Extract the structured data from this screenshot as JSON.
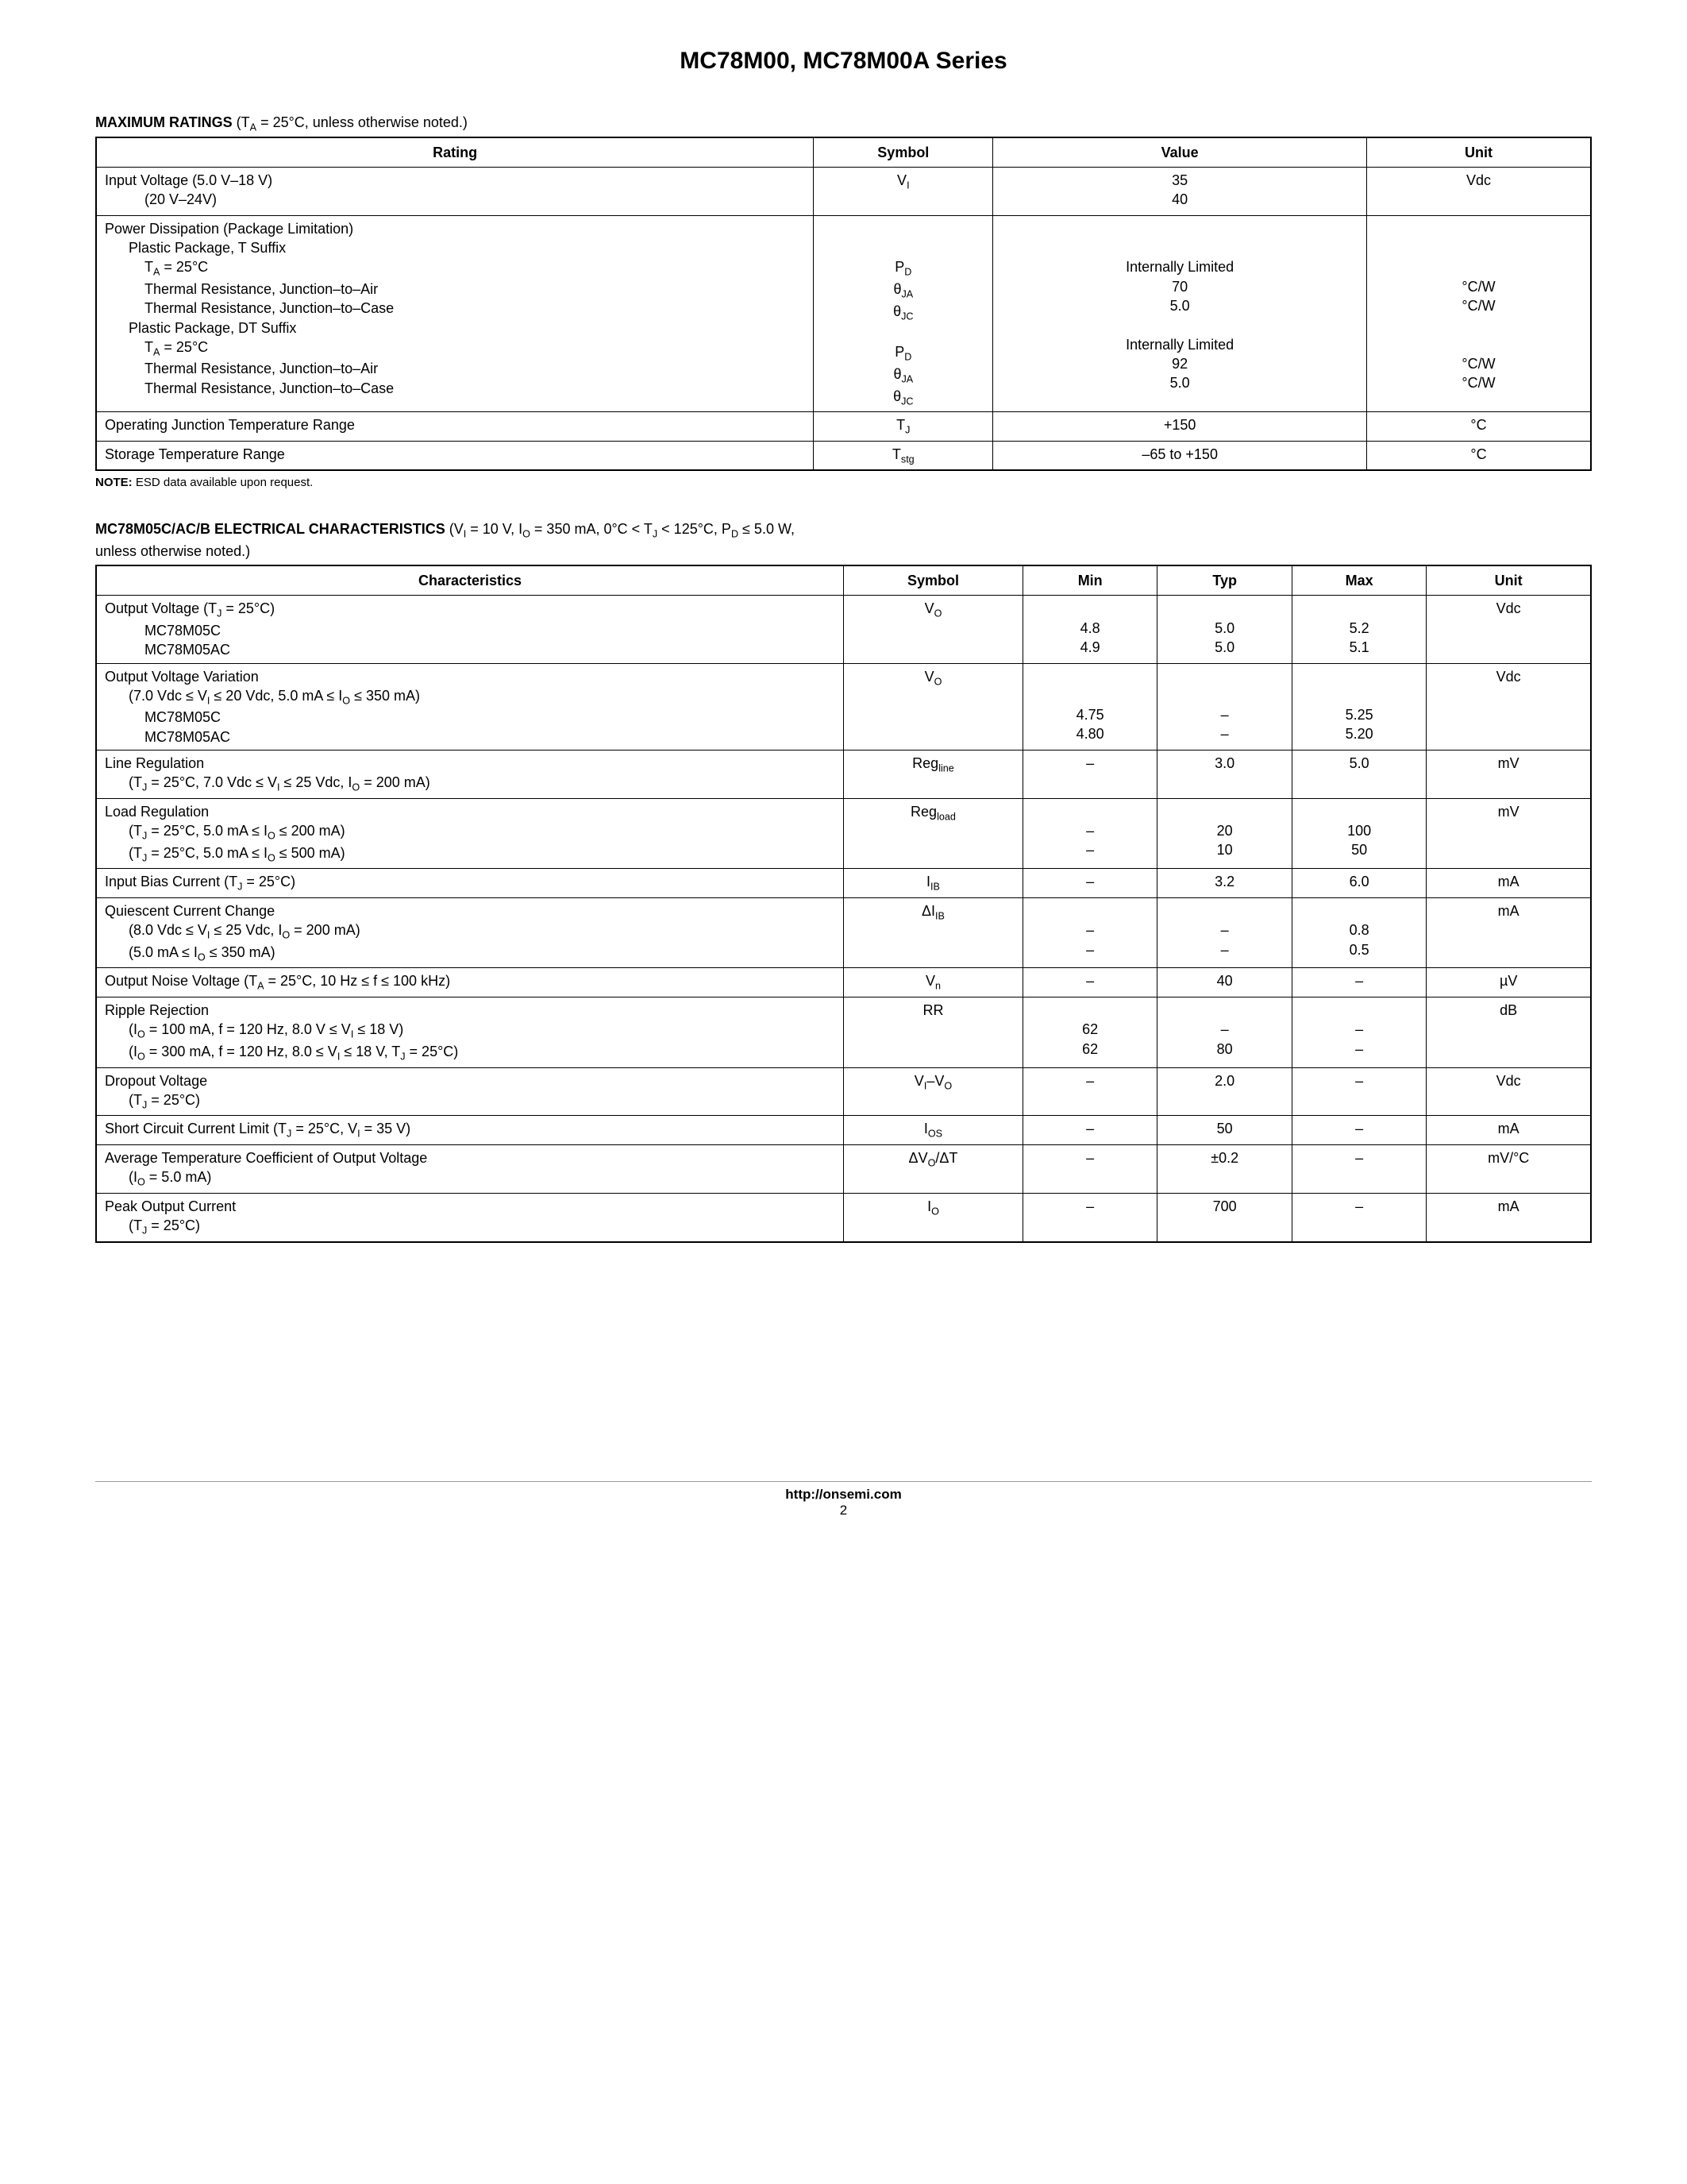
{
  "page": {
    "title": "MC78M00, MC78M00A Series",
    "footer_url": "http://onsemi.com",
    "footer_page": "2"
  },
  "colors": {
    "text": "#000000",
    "background": "#ffffff",
    "border": "#000000",
    "footer_rule": "#999999"
  },
  "typography": {
    "body_family": "Arial, Helvetica, sans-serif",
    "body_size_pt": 13,
    "title_size_pt": 22,
    "note_size_pt": 11
  },
  "max_ratings": {
    "heading_bold": "MAXIMUM RATINGS",
    "heading_rest": " (T_A = 25°C, unless otherwise noted.)",
    "columns": [
      "Rating",
      "Symbol",
      "Value",
      "Unit"
    ],
    "col_widths_pct": [
      48,
      12,
      25,
      15
    ],
    "note_bold": "NOTE:",
    "note_rest": " ESD data available upon request.",
    "rows": [
      {
        "rating_lines": [
          "Input Voltage   (5.0 V–18 V)",
          "(20 V–24V)"
        ],
        "rating_indent": [
          0,
          2
        ],
        "symbol_lines": [
          "V_I",
          ""
        ],
        "value_lines": [
          "35",
          "40"
        ],
        "unit_lines": [
          "Vdc",
          ""
        ]
      },
      {
        "rating_lines": [
          "Power Dissipation (Package Limitation)",
          "Plastic Package, T Suffix",
          "T_A = 25°C",
          "Thermal Resistance, Junction–to–Air",
          "Thermal Resistance, Junction–to–Case",
          "Plastic Package, DT Suffix",
          "T_A = 25°C",
          "Thermal Resistance, Junction–to–Air",
          "Thermal Resistance, Junction–to–Case"
        ],
        "rating_indent": [
          0,
          1,
          2,
          2,
          2,
          1,
          2,
          2,
          2
        ],
        "symbol_lines": [
          "",
          "",
          "P_D",
          "θ_JA",
          "θ_JC",
          "",
          "P_D",
          "θ_JA",
          "θ_JC"
        ],
        "value_lines": [
          "",
          "",
          "Internally Limited",
          "70",
          "5.0",
          "",
          "Internally Limited",
          "92",
          "5.0"
        ],
        "unit_lines": [
          "",
          "",
          "",
          "°C/W",
          "°C/W",
          "",
          "",
          "°C/W",
          "°C/W"
        ]
      },
      {
        "rating_lines": [
          "Operating Junction Temperature Range"
        ],
        "rating_indent": [
          0
        ],
        "symbol_lines": [
          "T_J"
        ],
        "value_lines": [
          "+150"
        ],
        "unit_lines": [
          "°C"
        ]
      },
      {
        "rating_lines": [
          "Storage Temperature Range"
        ],
        "rating_indent": [
          0
        ],
        "symbol_lines": [
          "T_stg"
        ],
        "value_lines": [
          "–65 to +150"
        ],
        "unit_lines": [
          "°C"
        ]
      }
    ]
  },
  "elec_char": {
    "heading_bold": "MC78M05C/AC/B ELECTRICAL CHARACTERISTICS",
    "heading_rest": " (V_I = 10 V, I_O = 350 mA, 0°C < T_J < 125°C, P_D ≤ 5.0 W,",
    "heading_line2": "unless otherwise noted.)",
    "columns": [
      "Characteristics",
      "Symbol",
      "Min",
      "Typ",
      "Max",
      "Unit"
    ],
    "col_widths_pct": [
      50,
      12,
      9,
      9,
      9,
      11
    ],
    "rows": [
      {
        "char_lines": [
          "Output Voltage (T_J = 25°C)",
          "MC78M05C",
          "MC78M05AC"
        ],
        "char_indent": [
          0,
          2,
          2
        ],
        "symbol_lines": [
          "V_O",
          "",
          ""
        ],
        "min_lines": [
          "",
          "4.8",
          "4.9"
        ],
        "typ_lines": [
          "",
          "5.0",
          "5.0"
        ],
        "max_lines": [
          "",
          "5.2",
          "5.1"
        ],
        "unit_lines": [
          "Vdc",
          "",
          ""
        ]
      },
      {
        "char_lines": [
          "Output Voltage Variation",
          "(7.0 Vdc ≤ V_I ≤ 20 Vdc, 5.0 mA ≤ I_O ≤ 350 mA)",
          "MC78M05C",
          "MC78M05AC"
        ],
        "char_indent": [
          0,
          1,
          2,
          2
        ],
        "symbol_lines": [
          "V_O",
          "",
          "",
          ""
        ],
        "min_lines": [
          "",
          "",
          "4.75",
          "4.80"
        ],
        "typ_lines": [
          "",
          "",
          "–",
          "–"
        ],
        "max_lines": [
          "",
          "",
          "5.25",
          "5.20"
        ],
        "unit_lines": [
          "Vdc",
          "",
          "",
          ""
        ]
      },
      {
        "char_lines": [
          "Line Regulation",
          "(T_J = 25°C, 7.0 Vdc ≤ V_I ≤ 25 Vdc, I_O = 200 mA)"
        ],
        "char_indent": [
          0,
          1
        ],
        "symbol_lines": [
          "Reg_line",
          ""
        ],
        "min_lines": [
          "–",
          ""
        ],
        "typ_lines": [
          "3.0",
          ""
        ],
        "max_lines": [
          "5.0",
          ""
        ],
        "unit_lines": [
          "mV",
          ""
        ]
      },
      {
        "char_lines": [
          "Load Regulation",
          "(T_J = 25°C, 5.0 mA ≤ I_O ≤ 200 mA)",
          "(T_J = 25°C, 5.0 mA ≤ I_O ≤ 500 mA)"
        ],
        "char_indent": [
          0,
          1,
          1
        ],
        "symbol_lines": [
          "Reg_load",
          "",
          ""
        ],
        "min_lines": [
          "",
          "–",
          "–"
        ],
        "typ_lines": [
          "",
          "20",
          "10"
        ],
        "max_lines": [
          "",
          "100",
          "50"
        ],
        "unit_lines": [
          "mV",
          "",
          ""
        ]
      },
      {
        "char_lines": [
          "Input Bias Current (T_J = 25°C)"
        ],
        "char_indent": [
          0
        ],
        "symbol_lines": [
          "I_IB"
        ],
        "min_lines": [
          "–"
        ],
        "typ_lines": [
          "3.2"
        ],
        "max_lines": [
          "6.0"
        ],
        "unit_lines": [
          "mA"
        ]
      },
      {
        "char_lines": [
          "Quiescent Current Change",
          "(8.0 Vdc ≤ V_I ≤ 25 Vdc, I_O = 200 mA)",
          "(5.0 mA ≤ I_O ≤ 350 mA)"
        ],
        "char_indent": [
          0,
          1,
          1
        ],
        "symbol_lines": [
          "ΔI_IB",
          "",
          ""
        ],
        "min_lines": [
          "",
          "–",
          "–"
        ],
        "typ_lines": [
          "",
          "–",
          "–"
        ],
        "max_lines": [
          "",
          "0.8",
          "0.5"
        ],
        "unit_lines": [
          "mA",
          "",
          ""
        ]
      },
      {
        "char_lines": [
          "Output Noise Voltage (T_A = 25°C, 10 Hz ≤ f ≤ 100 kHz)"
        ],
        "char_indent": [
          0
        ],
        "symbol_lines": [
          "V_n"
        ],
        "min_lines": [
          "–"
        ],
        "typ_lines": [
          "40"
        ],
        "max_lines": [
          "–"
        ],
        "unit_lines": [
          "µV"
        ]
      },
      {
        "char_lines": [
          "Ripple Rejection",
          "(I_O = 100 mA, f = 120 Hz, 8.0 V ≤ V_I ≤ 18 V)",
          "(I_O = 300 mA, f = 120 Hz, 8.0 ≤ V_I ≤ 18 V, T_J = 25°C)"
        ],
        "char_indent": [
          0,
          1,
          1
        ],
        "symbol_lines": [
          "RR",
          "",
          ""
        ],
        "min_lines": [
          "",
          "62",
          "62"
        ],
        "typ_lines": [
          "",
          "–",
          "80"
        ],
        "max_lines": [
          "",
          "–",
          "–"
        ],
        "unit_lines": [
          "dB",
          "",
          ""
        ]
      },
      {
        "char_lines": [
          "Dropout Voltage",
          "(T_J = 25°C)"
        ],
        "char_indent": [
          0,
          1
        ],
        "symbol_lines": [
          "V_I–V_O",
          ""
        ],
        "min_lines": [
          "–",
          ""
        ],
        "typ_lines": [
          "2.0",
          ""
        ],
        "max_lines": [
          "–",
          ""
        ],
        "unit_lines": [
          "Vdc",
          ""
        ]
      },
      {
        "char_lines": [
          "Short Circuit Current Limit (T_J = 25°C, V_I = 35 V)"
        ],
        "char_indent": [
          0
        ],
        "symbol_lines": [
          "I_OS"
        ],
        "min_lines": [
          "–"
        ],
        "typ_lines": [
          "50"
        ],
        "max_lines": [
          "–"
        ],
        "unit_lines": [
          "mA"
        ]
      },
      {
        "char_lines": [
          "Average Temperature Coefficient of Output Voltage",
          "(I_O = 5.0 mA)"
        ],
        "char_indent": [
          0,
          1
        ],
        "symbol_lines": [
          "ΔV_O/ΔT",
          ""
        ],
        "min_lines": [
          "–",
          ""
        ],
        "typ_lines": [
          "±0.2",
          ""
        ],
        "max_lines": [
          "–",
          ""
        ],
        "unit_lines": [
          "mV/°C",
          ""
        ]
      },
      {
        "char_lines": [
          "Peak Output Current",
          "(T_J = 25°C)"
        ],
        "char_indent": [
          0,
          1
        ],
        "symbol_lines": [
          "I_O",
          ""
        ],
        "min_lines": [
          "–",
          ""
        ],
        "typ_lines": [
          "700",
          ""
        ],
        "max_lines": [
          "–",
          ""
        ],
        "unit_lines": [
          "mA",
          ""
        ]
      }
    ]
  }
}
